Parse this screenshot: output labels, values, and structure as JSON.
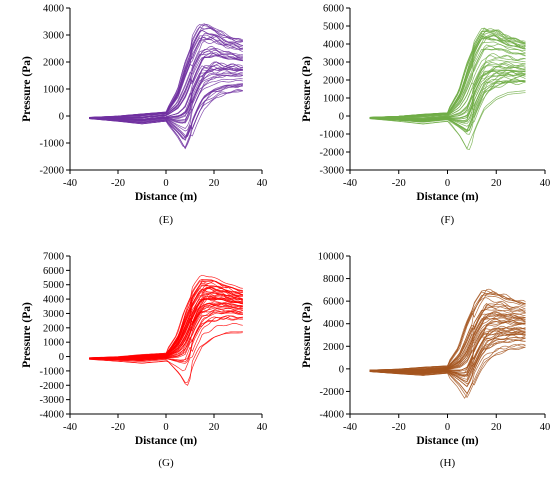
{
  "chart_data": [
    {
      "id": "E",
      "type": "line",
      "panel_label": "(E)",
      "xlabel": "Distance (m)",
      "ylabel": "Pressure (Pa)",
      "xlim": [
        -40,
        40
      ],
      "ylim": [
        -2000,
        4000
      ],
      "xticks": [
        -40,
        -20,
        0,
        20,
        40
      ],
      "yticks": [
        -2000,
        -1000,
        0,
        1000,
        2000,
        3000,
        4000
      ],
      "color": "#7030A0",
      "series_count": 50,
      "envelope": {
        "x": [
          -32,
          -20,
          -10,
          0,
          5,
          8,
          12,
          15,
          20,
          25,
          32
        ],
        "y_min": [
          -100,
          -200,
          -300,
          -200,
          -800,
          -1300,
          -400,
          200,
          600,
          800,
          900
        ],
        "y_max": [
          -50,
          0,
          80,
          150,
          1000,
          2000,
          2900,
          3400,
          3300,
          3000,
          2800
        ]
      }
    },
    {
      "id": "F",
      "type": "line",
      "panel_label": "(F)",
      "xlabel": "Distance (m)",
      "ylabel": "Pressure (Pa)",
      "xlim": [
        -40,
        40
      ],
      "ylim": [
        -3000,
        6000
      ],
      "xticks": [
        -40,
        -20,
        0,
        20,
        40
      ],
      "yticks": [
        -3000,
        -2000,
        -1000,
        0,
        1000,
        2000,
        3000,
        4000,
        5000,
        6000
      ],
      "color": "#70AD47",
      "series_count": 50,
      "envelope": {
        "x": [
          -32,
          -20,
          -10,
          0,
          5,
          8,
          12,
          15,
          20,
          25,
          32
        ],
        "y_min": [
          -150,
          -300,
          -450,
          -300,
          -1200,
          -2000,
          -600,
          300,
          900,
          1200,
          1300
        ],
        "y_max": [
          -70,
          0,
          120,
          200,
          1500,
          3000,
          4300,
          5000,
          4900,
          4500,
          4200
        ]
      }
    },
    {
      "id": "G",
      "type": "line",
      "panel_label": "(G)",
      "xlabel": "Distance (m)",
      "ylabel": "Pressure (Pa)",
      "xlim": [
        -40,
        40
      ],
      "ylim": [
        -4000,
        7000
      ],
      "xticks": [
        -40,
        -20,
        0,
        20,
        40
      ],
      "yticks": [
        -4000,
        -3000,
        -2000,
        -1000,
        0,
        1000,
        2000,
        3000,
        4000,
        5000,
        6000,
        7000
      ],
      "color": "#FF0000",
      "series_count": 50,
      "envelope": {
        "x": [
          -32,
          -20,
          -10,
          0,
          5,
          8,
          12,
          15,
          20,
          25,
          32
        ],
        "y_min": [
          -200,
          -350,
          -500,
          -350,
          -1400,
          -2400,
          -700,
          350,
          1000,
          1400,
          1500
        ],
        "y_max": [
          -80,
          0,
          150,
          250,
          1700,
          3500,
          5000,
          5700,
          5600,
          5200,
          4800
        ]
      }
    },
    {
      "id": "H",
      "type": "line",
      "panel_label": "(H)",
      "xlabel": "Distance (m)",
      "ylabel": "Pressure (Pa)",
      "xlim": [
        -40,
        40
      ],
      "ylim": [
        -4000,
        10000
      ],
      "xticks": [
        -40,
        -20,
        0,
        20,
        40
      ],
      "yticks": [
        -4000,
        -2000,
        0,
        2000,
        4000,
        6000,
        8000,
        10000
      ],
      "color": "#A5551E",
      "series_count": 50,
      "envelope": {
        "x": [
          -32,
          -20,
          -10,
          0,
          5,
          8,
          12,
          15,
          20,
          25,
          32
        ],
        "y_min": [
          -250,
          -450,
          -600,
          -400,
          -1700,
          -2800,
          -800,
          400,
          1200,
          1600,
          1800
        ],
        "y_max": [
          -100,
          0,
          180,
          300,
          2100,
          4300,
          6200,
          7200,
          7000,
          6500,
          6000
        ]
      }
    }
  ]
}
